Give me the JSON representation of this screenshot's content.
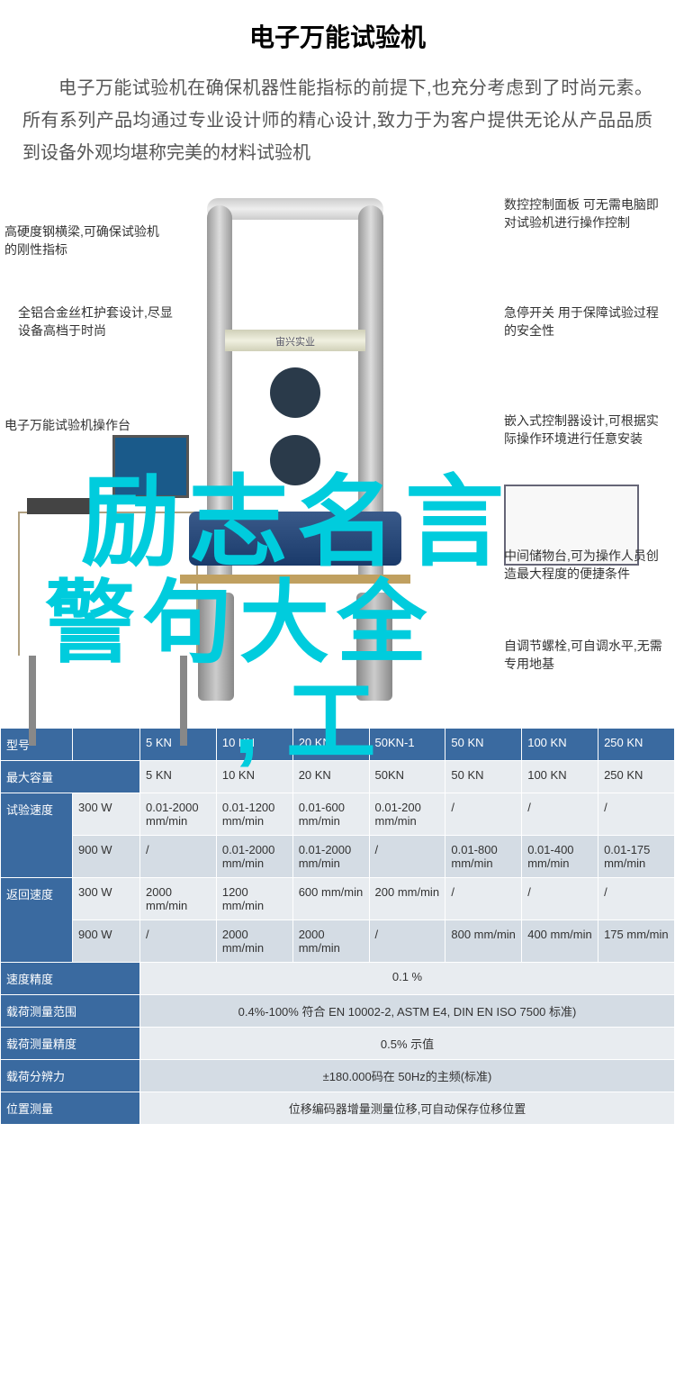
{
  "title": "电子万能试验机",
  "description": "电子万能试验机在确保机器性能指标的前提下,也充分考虑到了时尚元素。所有系列产品均通过专业设计师的精心设计,致力于为客户提供无论从产品品质到设备外观均堪称完美的材料试验机",
  "brand_label": "宙兴实业",
  "callouts": {
    "l1": "高硬度钢横梁,可确保试验机的刚性指标",
    "l2": "全铝合金丝杠护套设计,尽显设备高档于时尚",
    "l3": "电子万能试验机操作台",
    "r1": "数控控制面板\n可无需电脑即对试验机进行操作控制",
    "r2": "急停开关\n用于保障试验过程的安全性",
    "r3": "嵌入式控制器设计,可根据实际操作环境进行任意安装",
    "r4": "中间储物台,可为操作人员创造最大程度的便捷条件",
    "r5": "自调节螺栓,可自调水平,无需专用地基"
  },
  "overlay": {
    "line1": "励志名言",
    "line2": "警句大全",
    "line3": ",工"
  },
  "table": {
    "header_bg": "#3a6aa0",
    "header_fg": "#ffffff",
    "row_bg_0": "#e8ecf0",
    "row_bg_1": "#d4dce4",
    "columns": [
      "型号",
      "",
      "5 KN",
      "10 KN",
      "20 KN",
      "50KN-1",
      "50 KN",
      "100 KN",
      "250 KN"
    ],
    "rows": [
      {
        "alt": 0,
        "label": "最大容量",
        "sub": "",
        "cells": [
          "5 KN",
          "10 KN",
          "20 KN",
          "50KN",
          "50 KN",
          "100 KN",
          "250 KN"
        ]
      },
      {
        "alt": 0,
        "label": "试验速度",
        "sub": "300 W",
        "cells": [
          "0.01-2000 mm/min",
          "0.01-1200 mm/min",
          "0.01-600 mm/min",
          "0.01-200 mm/min",
          "/",
          "/",
          "/"
        ],
        "rowspan": 2
      },
      {
        "alt": 1,
        "label": "",
        "sub": "900 W",
        "cells": [
          "/",
          "0.01-2000 mm/min",
          "0.01-2000 mm/min",
          "/",
          "0.01-800 mm/min",
          "0.01-400 mm/min",
          "0.01-175 mm/min"
        ]
      },
      {
        "alt": 0,
        "label": "返回速度",
        "sub": "300 W",
        "cells": [
          "2000 mm/min",
          "1200 mm/min",
          "600 mm/min",
          "200 mm/min",
          "/",
          "/",
          "/"
        ],
        "rowspan": 2
      },
      {
        "alt": 1,
        "label": "",
        "sub": "900 W",
        "cells": [
          "/",
          "2000 mm/min",
          "2000 mm/min",
          "/",
          "800 mm/min",
          "400 mm/min",
          "175 mm/min"
        ]
      },
      {
        "alt": 0,
        "label": "速度精度",
        "merged": "0.1 %"
      },
      {
        "alt": 1,
        "label": "载荷测量范围",
        "merged": "0.4%-100% 符合 EN 10002-2, ASTM E4, DIN EN ISO 7500 标准)"
      },
      {
        "alt": 0,
        "label": "载荷测量精度",
        "merged": "0.5% 示值"
      },
      {
        "alt": 1,
        "label": "载荷分辨力",
        "merged": "±180.000码在 50Hz的主频(标准)"
      },
      {
        "alt": 0,
        "label": "位置测量",
        "merged": "位移编码器增量测量位移,可自动保存位移位置"
      }
    ]
  }
}
